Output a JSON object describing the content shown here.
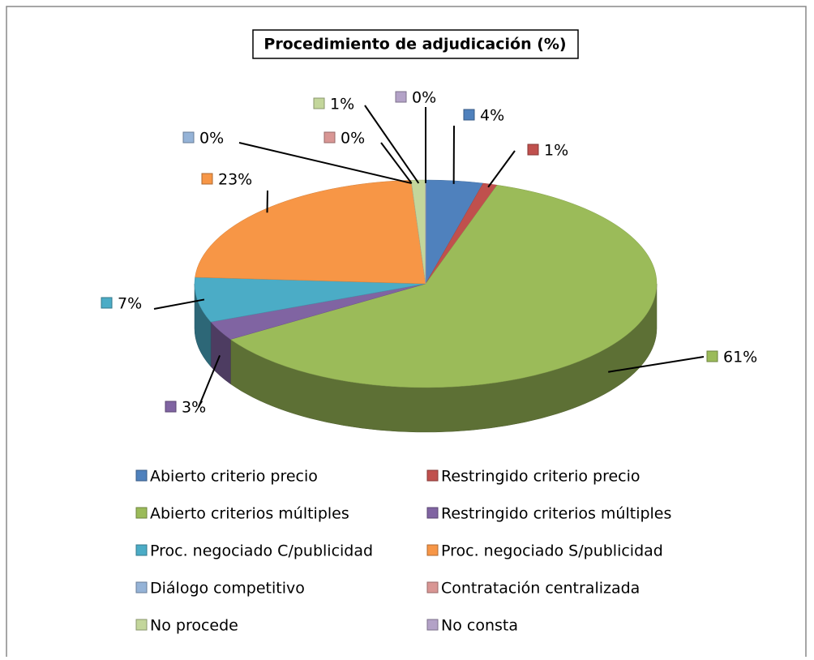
{
  "chart_data": {
    "type": "pie3d",
    "title": "Procedimiento de adjudicación (%)",
    "categories": [
      "Abierto criterio precio",
      "Restringido criterio precio",
      "Abierto criterios múltiples",
      "Restringido criterios múltiples",
      "Proc. negociado C/publicidad",
      "Proc. negociado S/publicidad",
      "Diálogo competitivo",
      "Contratación centralizada",
      "No procede",
      "No consta"
    ],
    "values": [
      4,
      1,
      61,
      3,
      7,
      23,
      0,
      0,
      1,
      0
    ],
    "value_labels": [
      "4%",
      "1%",
      "61%",
      "3%",
      "7%",
      "23%",
      "0%",
      "0%",
      "1%",
      "0%"
    ],
    "colors": [
      "#4f81bd",
      "#c0504d",
      "#9bbb59",
      "#8064a2",
      "#4bacc6",
      "#f79646",
      "#95b3d7",
      "#d99694",
      "#c3d69b",
      "#b3a2c7"
    ],
    "legend": "bottom"
  }
}
